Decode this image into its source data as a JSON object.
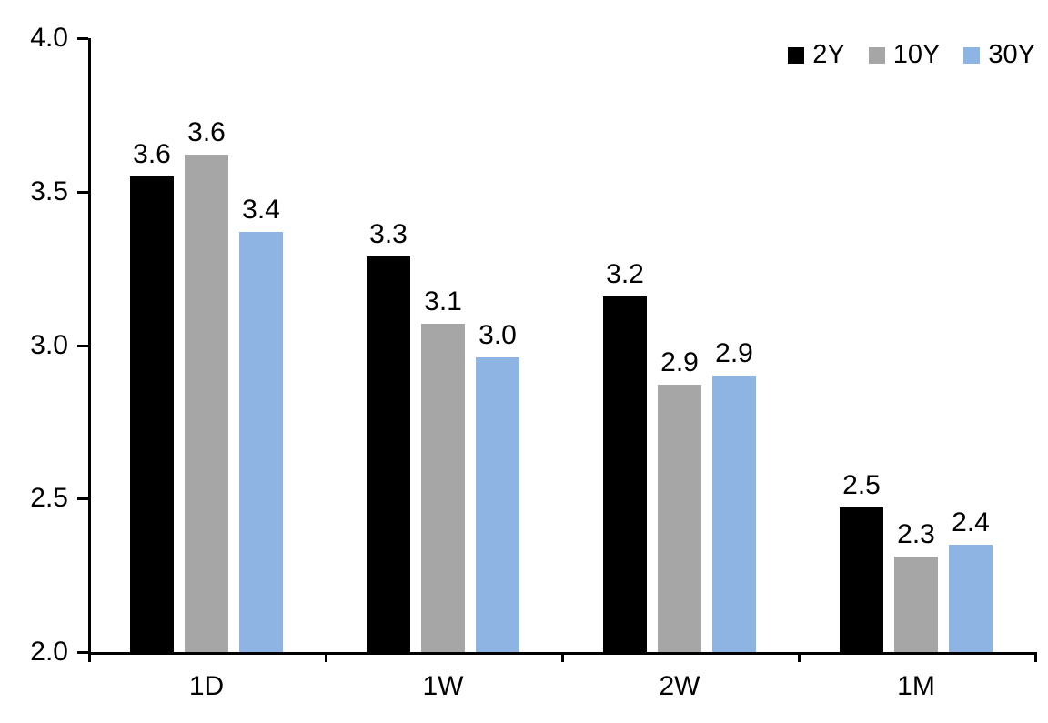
{
  "chart_data": {
    "type": "bar",
    "title": "",
    "xlabel": "",
    "ylabel": "",
    "categories": [
      "1D",
      "1W",
      "2W",
      "1M"
    ],
    "series": [
      {
        "name": "2Y",
        "color": "#000000",
        "values": [
          3.55,
          3.29,
          3.16,
          2.47
        ],
        "labels": [
          "3.6",
          "3.3",
          "3.2",
          "2.5"
        ]
      },
      {
        "name": "10Y",
        "color": "#A6A6A6",
        "values": [
          3.62,
          3.07,
          2.87,
          2.31
        ],
        "labels": [
          "3.6",
          "3.1",
          "2.9",
          "2.3"
        ]
      },
      {
        "name": "30Y",
        "color": "#8DB4E2",
        "values": [
          3.37,
          2.96,
          2.9,
          2.35
        ],
        "labels": [
          "3.4",
          "3.0",
          "2.9",
          "2.4"
        ]
      }
    ],
    "ylim": [
      2.0,
      4.0
    ],
    "yticks": [
      "4.0",
      "3.5",
      "3.0",
      "2.5",
      "2.0"
    ],
    "grid": "off",
    "legend_position": "top-right",
    "axis_color": "#000000"
  }
}
